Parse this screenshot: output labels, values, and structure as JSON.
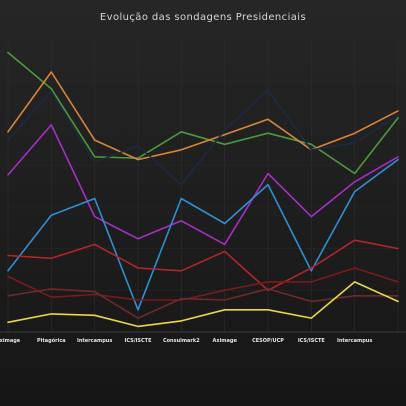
{
  "chart_data": {
    "type": "line",
    "title": "Evolução das sondagens Presidenciais",
    "xlabel": "",
    "ylabel": "",
    "grid": true,
    "legend_placement": "bottom",
    "categories": [
      "Aximage",
      "Pitagórica",
      "Intercampus",
      "ICS/ISCTE",
      "Consulmark2",
      "Aximage",
      "CESOP/UCP",
      "ICS/ISCTE",
      "Intercampus",
      ""
    ],
    "ylim": [
      0,
      21
    ],
    "series": [
      {
        "color": "#4a9a3a",
        "values": [
          20.1,
          17.5,
          12.6,
          12.5,
          14.4,
          13.5,
          14.3,
          13.5,
          11.4,
          15.4
        ]
      },
      {
        "color": "#d8853a",
        "values": [
          14.4,
          18.7,
          13.8,
          12.4,
          13.1,
          14.2,
          15.3,
          13.1,
          14.3,
          15.9
        ]
      },
      {
        "color": "#1c2a40",
        "values": [
          13.8,
          17.3,
          12.2,
          13.4,
          10.6,
          14.5,
          17.4,
          13.1,
          13.6,
          15.6
        ]
      },
      {
        "color": "#a52fc4",
        "values": [
          11.3,
          14.9,
          8.3,
          6.7,
          8.0,
          6.3,
          11.4,
          8.3,
          10.8,
          12.6
        ]
      },
      {
        "color": "#2f8fd0",
        "values": [
          4.4,
          8.4,
          9.6,
          1.6,
          9.6,
          7.8,
          10.6,
          4.4,
          10.1,
          12.4
        ]
      },
      {
        "color": "#b0262a",
        "values": [
          5.5,
          5.3,
          6.3,
          4.6,
          4.4,
          5.8,
          3.0,
          4.6,
          6.6,
          6.0
        ]
      },
      {
        "color": "#7a1a1c",
        "values": [
          4.0,
          2.5,
          2.7,
          2.3,
          2.3,
          3.0,
          3.6,
          3.6,
          4.6,
          3.6
        ]
      },
      {
        "color": "#6e2a2a",
        "values": [
          2.6,
          3.1,
          2.9,
          1.0,
          2.4,
          2.3,
          3.1,
          2.2,
          2.6,
          2.6
        ]
      },
      {
        "color": "#e8d84a",
        "values": [
          0.7,
          1.3,
          1.2,
          0.4,
          0.8,
          1.6,
          1.6,
          1.0,
          3.6,
          2.2
        ]
      }
    ]
  }
}
